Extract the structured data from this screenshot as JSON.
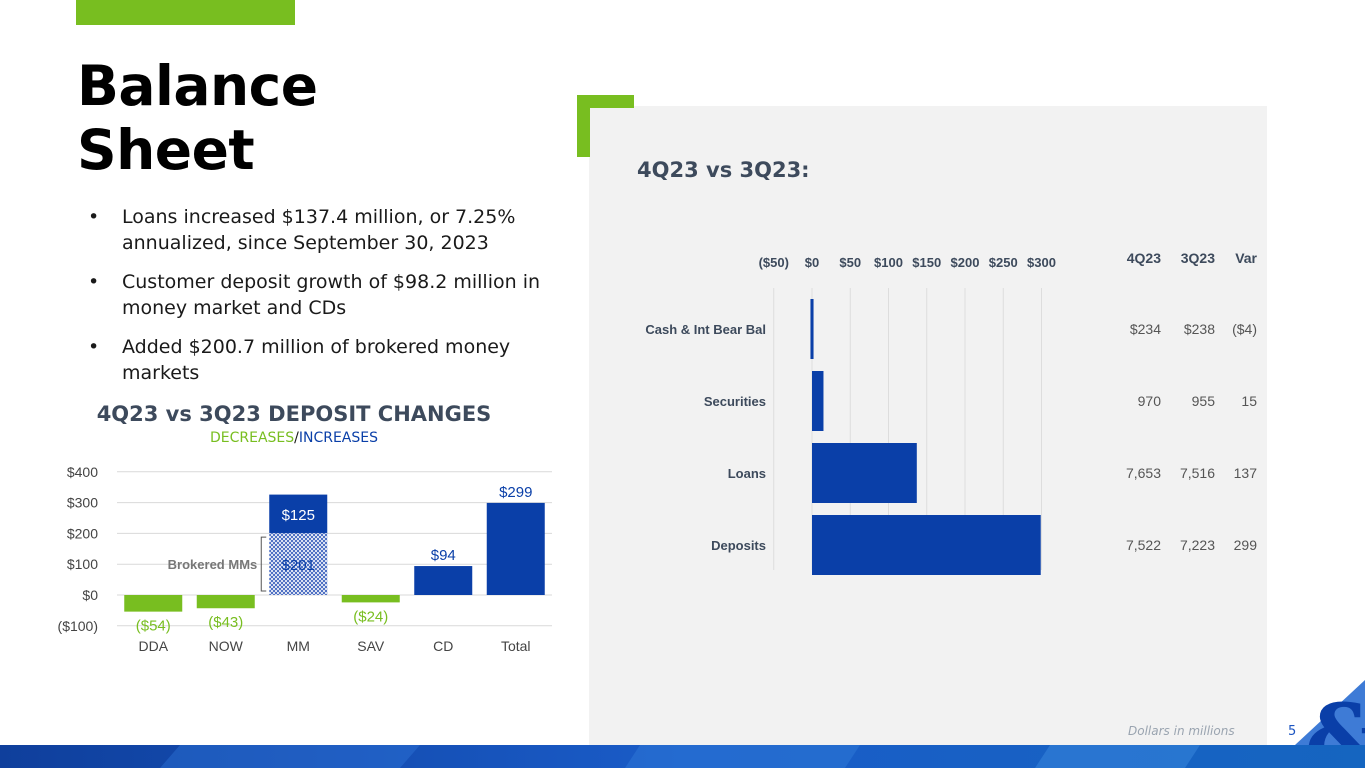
{
  "title": "Balance Sheet",
  "title_lines": [
    "Balance",
    "Sheet"
  ],
  "bullets": [
    "Loans increased $137.4 million, or 7.25% annualized, since September 30, 2023",
    "Customer deposit growth of $98.2 million in money market and CDs",
    "Added $200.7 million of brokered money markets"
  ],
  "deposit_chart": {
    "title": "4Q23 vs 3Q23 DEPOSIT CHANGES",
    "subtitle_decreases": "DECREASES",
    "subtitle_sep": "/",
    "subtitle_increases": "INCREASES",
    "brokered_label": "Brokered MMs"
  },
  "panel": {
    "heading": "4Q23 vs 3Q23:",
    "footnote": "Dollars in millions",
    "page_number": "5"
  },
  "colors": {
    "accent_green": "#78be20",
    "navy": "#0a3fa8",
    "dark_navy": "#1c3f94",
    "panel_bg": "#f2f2f2"
  },
  "icons": [
    "ampersand-logo-icon"
  ],
  "chart_data": [
    {
      "type": "bar",
      "title": "4Q23 vs 3Q23 DEPOSIT CHANGES",
      "categories": [
        "DDA",
        "NOW",
        "MM",
        "SAV",
        "CD",
        "Total"
      ],
      "values": [
        -54,
        -43,
        326,
        -24,
        94,
        299
      ],
      "value_labels": [
        "($54)",
        "($43)",
        "",
        "($24)",
        "$94",
        "$299"
      ],
      "stacked_mm": [
        {
          "name": "Brokered MMs",
          "value": 201,
          "label": "$201"
        },
        {
          "name": "",
          "value": 125,
          "label": "$125"
        }
      ],
      "yticks": [
        "$400",
        "$300",
        "$200",
        "$100",
        "$0",
        "($100)"
      ],
      "ylim": [
        -100,
        400
      ],
      "grid": true
    },
    {
      "type": "bar",
      "orientation": "horizontal",
      "categories": [
        "Cash & Int Bear Bal",
        "Securities",
        "Loans",
        "Deposits"
      ],
      "values": [
        -4,
        15,
        137,
        299
      ],
      "xticks": [
        "($50)",
        "$0",
        "$50",
        "$100",
        "$150",
        "$200",
        "$250",
        "$300"
      ],
      "xlim": [
        -50,
        300
      ],
      "grid": true,
      "table": {
        "columns": [
          "4Q23",
          "3Q23",
          "Var"
        ],
        "rows": [
          [
            "$234",
            "$238",
            "($4)"
          ],
          [
            "970",
            "955",
            "15"
          ],
          [
            "7,653",
            "7,516",
            "137"
          ],
          [
            "7,522",
            "7,223",
            "299"
          ]
        ]
      }
    }
  ]
}
